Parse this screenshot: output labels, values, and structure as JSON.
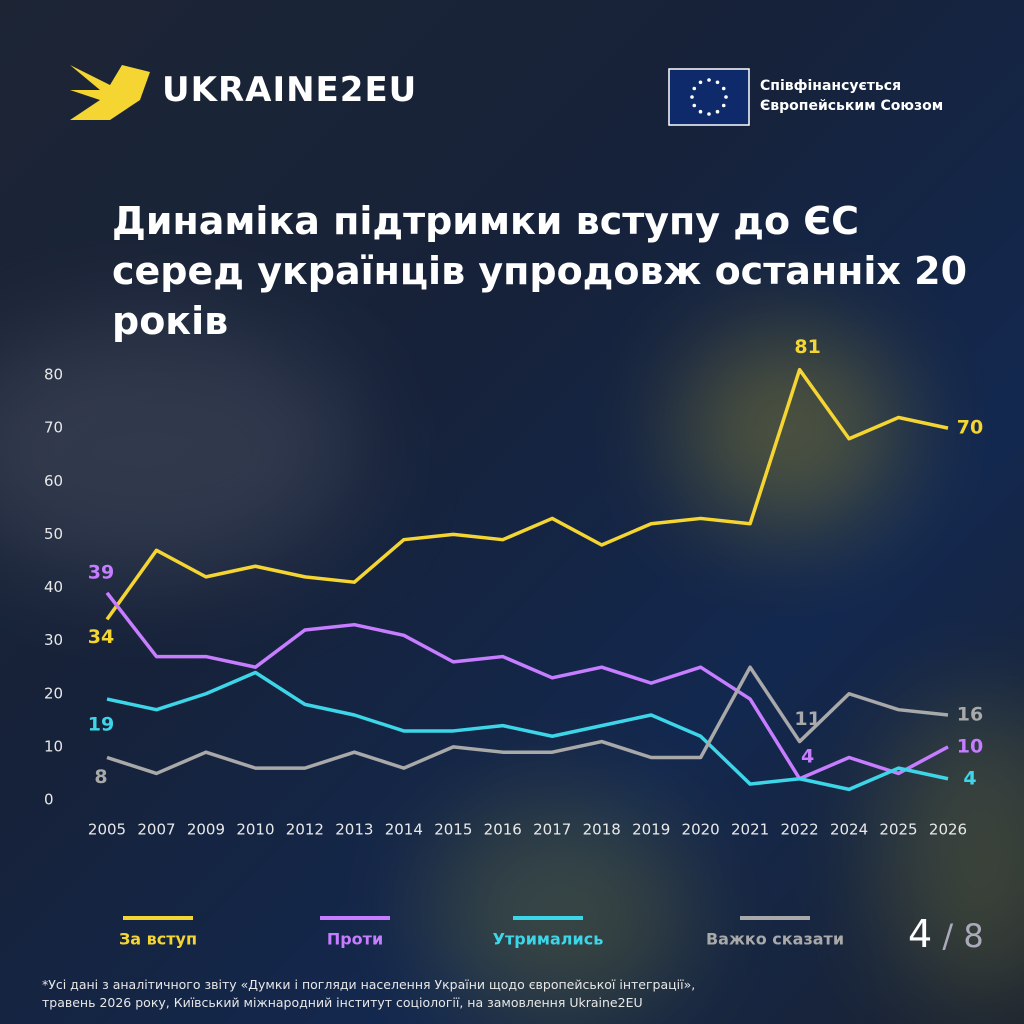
{
  "header": {
    "brand": "UKRAINE2EU",
    "funding": [
      "Співфінансується",
      "Європейським Союзом"
    ]
  },
  "chart_data": {
    "type": "line",
    "title": "Динаміка підтримки вступу до ЄС серед українців упродовж останніх 20 років",
    "categories": [
      "2005",
      "2007",
      "2009",
      "2010",
      "2012",
      "2013",
      "2014",
      "2015",
      "2016",
      "2017",
      "2018",
      "2019",
      "2020",
      "2021",
      "2022",
      "2024",
      "2025",
      "2026"
    ],
    "ylim": [
      0,
      80
    ],
    "yticks": [
      0,
      10,
      20,
      30,
      40,
      50,
      60,
      70,
      80
    ],
    "grid": false,
    "series": [
      {
        "name": "За вступ",
        "color": "#f5d531",
        "values": [
          34,
          47,
          42,
          44,
          42,
          41,
          49,
          50,
          49,
          53,
          48,
          52,
          53,
          52,
          81,
          68,
          72,
          70
        ],
        "value_labels": [
          "34",
          null,
          null,
          null,
          null,
          null,
          null,
          null,
          null,
          null,
          null,
          null,
          null,
          null,
          "81",
          null,
          null,
          "70"
        ]
      },
      {
        "name": "Проти",
        "color": "#c77dff",
        "values": [
          39,
          27,
          27,
          25,
          32,
          33,
          31,
          26,
          27,
          23,
          25,
          22,
          25,
          19,
          4,
          8,
          5,
          10
        ],
        "value_labels": [
          "39",
          null,
          null,
          null,
          null,
          null,
          null,
          null,
          null,
          null,
          null,
          null,
          null,
          null,
          "4",
          null,
          null,
          "10"
        ]
      },
      {
        "name": "Утримались",
        "color": "#3dd6e8",
        "values": [
          19,
          17,
          20,
          24,
          18,
          16,
          13,
          13,
          14,
          12,
          14,
          16,
          12,
          3,
          4,
          2,
          6,
          4
        ],
        "value_labels": [
          "19",
          null,
          null,
          null,
          null,
          null,
          null,
          null,
          null,
          null,
          null,
          null,
          null,
          null,
          null,
          null,
          null,
          "4"
        ]
      },
      {
        "name": "Важко сказати",
        "color": "#a9a9a9",
        "values": [
          8,
          5,
          9,
          6,
          6,
          9,
          6,
          10,
          9,
          9,
          11,
          8,
          8,
          25,
          11,
          20,
          17,
          16
        ],
        "value_labels": [
          "8",
          null,
          null,
          null,
          null,
          null,
          null,
          null,
          null,
          null,
          null,
          null,
          null,
          null,
          "11",
          null,
          null,
          "16"
        ]
      }
    ]
  },
  "page": {
    "current": 4,
    "total": 8
  },
  "footnote": [
    "*Усі дані з аналітичного звіту «Думки і погляди населення України щодо європейської інтеграції»,",
    "травень 2026 року, Київський міжнародний інститут соціології, на замовлення Ukraine2EU"
  ]
}
